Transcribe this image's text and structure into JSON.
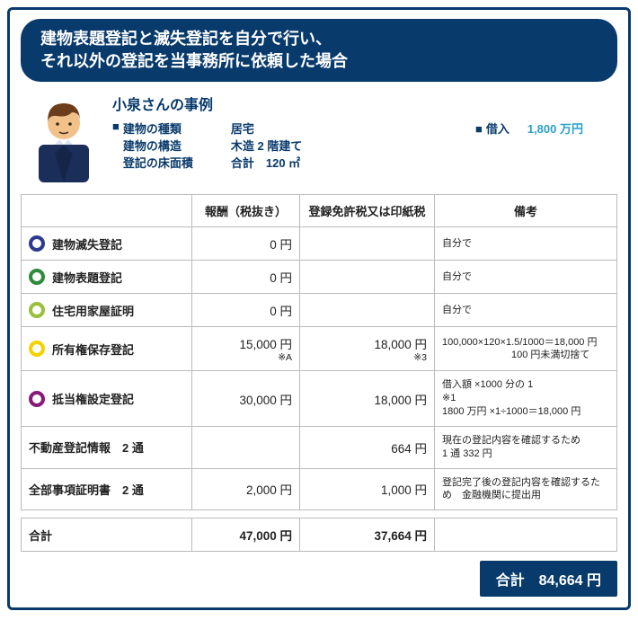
{
  "header": {
    "line1": "建物表題登記と滅失登記を自分で行い、",
    "line2": "それ以外の登記を当事務所に依頼した場合"
  },
  "case": {
    "title": "小泉さんの事例",
    "rows": [
      {
        "label": "建物の種類",
        "value": "居宅",
        "marker": true
      },
      {
        "label": "建物の構造",
        "value": "木造 2 階建て",
        "marker": false
      },
      {
        "label": "登記の床面積",
        "value": "合計　120 ㎡",
        "marker": false
      }
    ],
    "loan_label": "借入",
    "loan_value": "1,800 万円"
  },
  "columns": {
    "c1": "",
    "c2": "報酬（税抜き）",
    "c3": "登録免許税又は印紙税",
    "c4": "備考"
  },
  "rows": [
    {
      "ring": "#2b3a8f",
      "item": "建物滅失登記",
      "fee": "0 円",
      "tax": "",
      "note": "自分で"
    },
    {
      "ring": "#2e8b3d",
      "item": "建物表題登記",
      "fee": "0 円",
      "tax": "",
      "note": "自分で"
    },
    {
      "ring": "#9bbf3a",
      "item": "住宅用家屋証明",
      "fee": "0 円",
      "tax": "",
      "note": "自分で"
    },
    {
      "ring": "#f3d200",
      "item": "所有権保存登記",
      "fee": "15,000 円",
      "fee_sub": "※A",
      "tax": "18,000 円",
      "tax_sub": "※3",
      "note": "100,000×120×1.5/1000＝18,000 円\n　　　　　　　100 円未満切捨て"
    },
    {
      "ring": "#8a1a7a",
      "item": "抵当権設定登記",
      "fee": "30,000 円",
      "tax": "18,000 円",
      "note": "借入額 ×1000 分の 1\n※1\n1800 万円 ×1÷1000＝18,000 円"
    },
    {
      "indent": true,
      "item": "不動産登記情報　2 通",
      "fee": "",
      "tax": "664 円",
      "note": "現在の登記内容を確認するため\n1 通 332 円"
    },
    {
      "indent": true,
      "item": "全部事項証明書　2 通",
      "fee": "2,000 円",
      "tax": "1,000 円",
      "note": "登記完了後の登記内容を確認するため　金融機関に提出用"
    }
  ],
  "subtotal": {
    "label": "合計",
    "fee": "47,000 円",
    "tax": "37,664 円"
  },
  "grand": {
    "label": "合計",
    "value": "84,664 円"
  },
  "colors": {
    "primary": "#083a6b",
    "accent": "#28a0c9"
  }
}
